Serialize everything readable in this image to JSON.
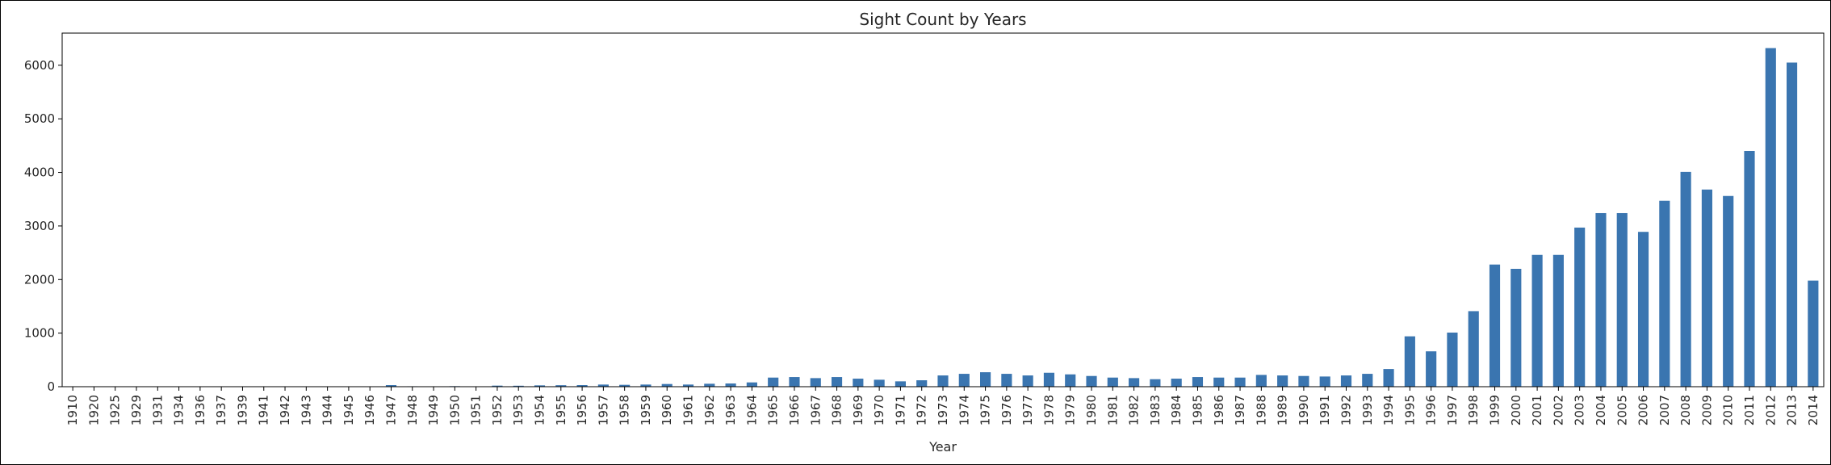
{
  "chart_data": {
    "type": "bar",
    "title": "Sight Count by Years",
    "xlabel": "Year",
    "ylabel": "",
    "ylim": [
      0,
      6600
    ],
    "yticks": [
      0,
      1000,
      2000,
      3000,
      4000,
      5000,
      6000
    ],
    "grid": false,
    "bar_color": "#3a75b0",
    "categories": [
      "1910",
      "1920",
      "1925",
      "1929",
      "1931",
      "1934",
      "1936",
      "1937",
      "1939",
      "1941",
      "1942",
      "1943",
      "1944",
      "1945",
      "1946",
      "1947",
      "1948",
      "1949",
      "1950",
      "1951",
      "1952",
      "1953",
      "1954",
      "1955",
      "1956",
      "1957",
      "1958",
      "1959",
      "1960",
      "1961",
      "1962",
      "1963",
      "1964",
      "1965",
      "1966",
      "1967",
      "1968",
      "1969",
      "1970",
      "1971",
      "1972",
      "1973",
      "1974",
      "1975",
      "1976",
      "1977",
      "1978",
      "1979",
      "1980",
      "1981",
      "1982",
      "1983",
      "1984",
      "1985",
      "1986",
      "1987",
      "1988",
      "1989",
      "1990",
      "1991",
      "1992",
      "1993",
      "1994",
      "1995",
      "1996",
      "1997",
      "1998",
      "1999",
      "2000",
      "2001",
      "2002",
      "2003",
      "2004",
      "2005",
      "2006",
      "2007",
      "2008",
      "2009",
      "2010",
      "2011",
      "2012",
      "2013",
      "2014"
    ],
    "values": [
      2,
      1,
      1,
      1,
      2,
      1,
      2,
      2,
      2,
      1,
      1,
      1,
      1,
      1,
      1,
      30,
      8,
      5,
      10,
      6,
      20,
      18,
      25,
      28,
      30,
      40,
      35,
      40,
      50,
      40,
      55,
      60,
      80,
      170,
      180,
      160,
      180,
      150,
      130,
      100,
      120,
      210,
      240,
      270,
      240,
      210,
      260,
      230,
      200,
      170,
      160,
      140,
      150,
      180,
      170,
      170,
      220,
      210,
      200,
      190,
      210,
      240,
      330,
      940,
      660,
      1010,
      1410,
      2280,
      2200,
      2460,
      2460,
      2970,
      3240,
      3240,
      2890,
      3470,
      4010,
      3680,
      3560,
      4400,
      6320,
      6050,
      1980
    ]
  }
}
